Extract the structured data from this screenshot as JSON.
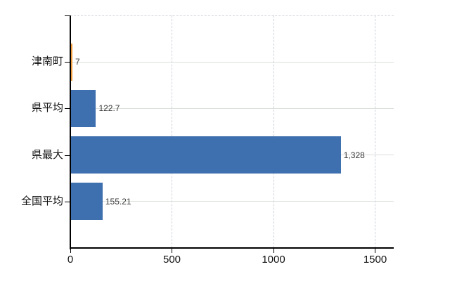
{
  "chart_data": {
    "type": "bar",
    "orientation": "horizontal",
    "title": "",
    "categories": [
      "津南町",
      "県平均",
      "県最大",
      "全国平均"
    ],
    "values": [
      7,
      122.7,
      1328,
      155.21
    ],
    "value_labels": [
      "7",
      "122.7",
      "1,328",
      "155.21"
    ],
    "bar_colors": [
      "#ED9A3C",
      "#3E6FAE",
      "#3E6FAE",
      "#3E6FAE"
    ],
    "x_ticks": [
      0,
      500,
      1000,
      1500
    ],
    "x_tick_labels": [
      "0",
      "500",
      "1000",
      "1500"
    ],
    "xlim": [
      0,
      1592
    ],
    "grid": true,
    "legend": "none"
  },
  "colors": {
    "background": "#ffffff",
    "bar_blue": "#3E6FAE",
    "bar_orange": "#ED9A3C",
    "h_gridline": "#d9dfd9",
    "v_gridline": "#cfd2da",
    "axis": "#000000",
    "category_text": "#111111",
    "tick_text": "#111111",
    "value_text": "#3a3a3a"
  }
}
